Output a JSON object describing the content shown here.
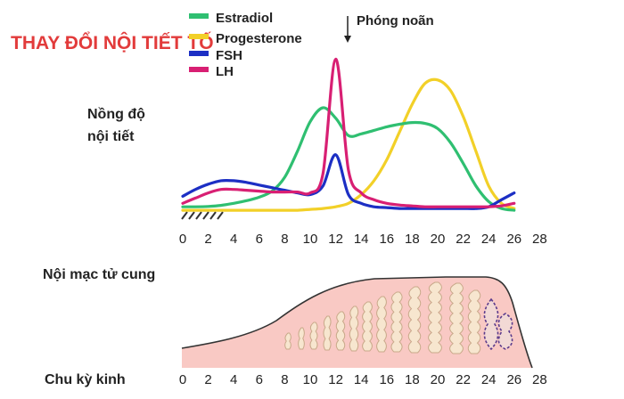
{
  "title": "THAY ĐỔI NỘI TIẾT TỐ",
  "ovulation_label": "Phóng noãn",
  "hormone_label_line1": "Nồng độ",
  "hormone_label_line2": "nội tiết",
  "endometrium_label": "Nội mạc tử cung",
  "cycle_label": "Chu kỳ kinh",
  "legend": [
    {
      "name": "Estradiol",
      "color": "#2fbf71"
    },
    {
      "name": "Progesterone",
      "color": "#f2d028"
    },
    {
      "name": "FSH",
      "color": "#1c2fc4"
    },
    {
      "name": "LH",
      "color": "#d81f73"
    }
  ],
  "chart_data": {
    "type": "line",
    "x_ticks": [
      0,
      2,
      4,
      6,
      8,
      10,
      12,
      14,
      16,
      18,
      20,
      22,
      24,
      26,
      28
    ],
    "x": [
      0,
      1,
      2,
      3,
      4,
      5,
      6,
      7,
      8,
      9,
      10,
      11,
      12,
      13,
      14,
      15,
      16,
      17,
      18,
      19,
      20,
      21,
      22,
      23,
      24,
      25,
      26
    ],
    "series": [
      {
        "name": "Estradiol",
        "color": "#2fbf71",
        "values": [
          3,
          3,
          3.2,
          3.8,
          5,
          6.5,
          8.5,
          12,
          20,
          35,
          52,
          60,
          54,
          44,
          45,
          47,
          49,
          50.5,
          51.5,
          51,
          48,
          40,
          28,
          15,
          6,
          2,
          1
        ]
      },
      {
        "name": "Progesterone",
        "color": "#f2d028",
        "values": [
          1,
          1,
          1,
          1,
          1,
          1,
          1,
          1,
          1,
          1,
          1.5,
          2,
          3,
          5,
          10,
          18,
          30,
          46,
          62,
          74,
          76,
          70,
          55,
          35,
          15,
          5,
          2
        ]
      },
      {
        "name": "FSH",
        "color": "#1c2fc4",
        "values": [
          9,
          13,
          16,
          18,
          18,
          17,
          15.5,
          14,
          12.5,
          11,
          10,
          15,
          33,
          10,
          5,
          3,
          2.5,
          2,
          2,
          2,
          2,
          2,
          2,
          2,
          3,
          7,
          11
        ]
      },
      {
        "name": "LH",
        "color": "#d81f73",
        "values": [
          5,
          8,
          11,
          13,
          13,
          12.5,
          12,
          11.5,
          11.5,
          11.5,
          11,
          22,
          88,
          24,
          11,
          7,
          5,
          4,
          3.5,
          3,
          3,
          3,
          3,
          3,
          3,
          3.5,
          5
        ]
      }
    ]
  },
  "endometrium_ticks": [
    0,
    2,
    4,
    6,
    8,
    10,
    12,
    14,
    16,
    18,
    20,
    22,
    24,
    26,
    28
  ]
}
